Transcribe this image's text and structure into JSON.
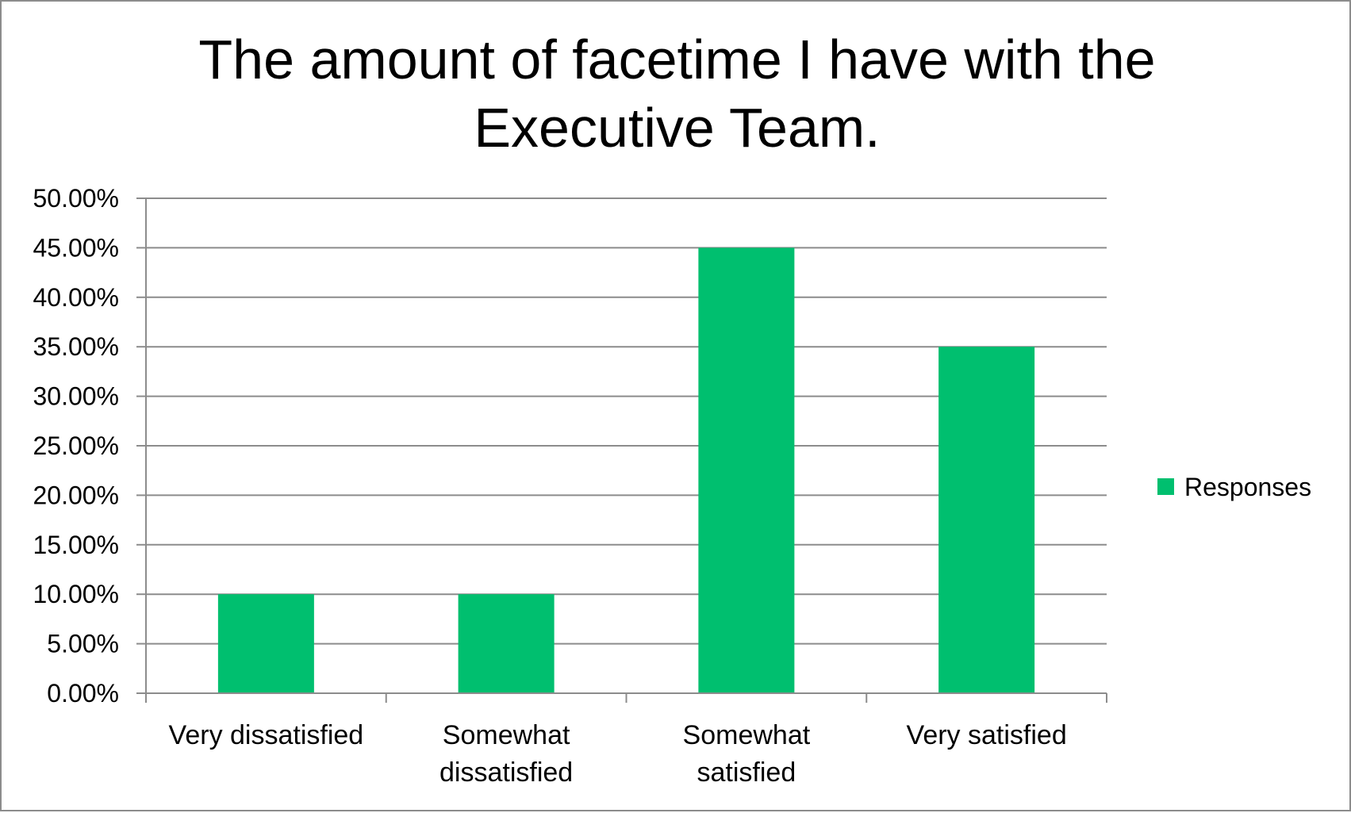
{
  "chart_data": {
    "type": "bar",
    "title_lines": [
      "The amount of facetime I have with the",
      "Executive Team."
    ],
    "categories": [
      [
        "Very dissatisfied"
      ],
      [
        "Somewhat",
        "dissatisfied"
      ],
      [
        "Somewhat",
        "satisfied"
      ],
      [
        "Very satisfied"
      ]
    ],
    "series": [
      {
        "name": "Responses",
        "values": [
          10,
          10,
          45,
          35
        ],
        "color": "#00bf6f"
      }
    ],
    "ylim": [
      0,
      50
    ],
    "ytick_step": 5,
    "ytick_labels": [
      "0.00%",
      "5.00%",
      "10.00%",
      "15.00%",
      "20.00%",
      "25.00%",
      "30.00%",
      "35.00%",
      "40.00%",
      "45.00%",
      "50.00%"
    ],
    "grid": true,
    "legend_position": "right",
    "colors": {
      "bar": "#00bf6f",
      "grid": "#8c8c8c",
      "axis": "#8c8c8c"
    }
  }
}
